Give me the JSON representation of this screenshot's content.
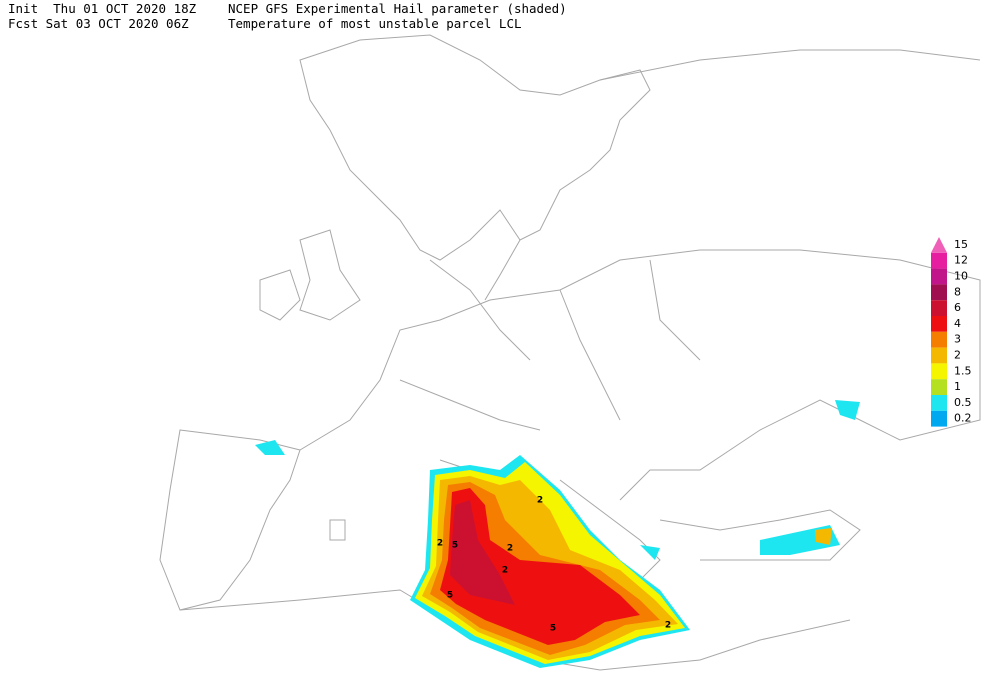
{
  "header": {
    "init": "Init  Thu 01 OCT 2020 18Z",
    "fcst": "Fcst Sat 03 OCT 2020 06Z",
    "title": "NCEP GFS Experimental Hail parameter (shaded)",
    "subtitle": "Temperature of most unstable parcel LCL"
  },
  "legend": [
    {
      "label": "15",
      "color": "#ef5fb8"
    },
    {
      "label": "12",
      "color": "#e61fa0"
    },
    {
      "label": "10",
      "color": "#c0168a"
    },
    {
      "label": "8",
      "color": "#a01050"
    },
    {
      "label": "6",
      "color": "#cc1030"
    },
    {
      "label": "4",
      "color": "#ee1010"
    },
    {
      "label": "3",
      "color": "#f57d00"
    },
    {
      "label": "2",
      "color": "#f5b800"
    },
    {
      "label": "1.5",
      "color": "#f5f500"
    },
    {
      "label": "1",
      "color": "#b4e020"
    },
    {
      "label": "0.5",
      "color": "#1ee6f0"
    },
    {
      "label": "0.2",
      "color": "#00a8f0"
    }
  ],
  "contour_labels": [
    "2",
    "2",
    "5",
    "2",
    "2",
    "5",
    "2",
    "5"
  ]
}
